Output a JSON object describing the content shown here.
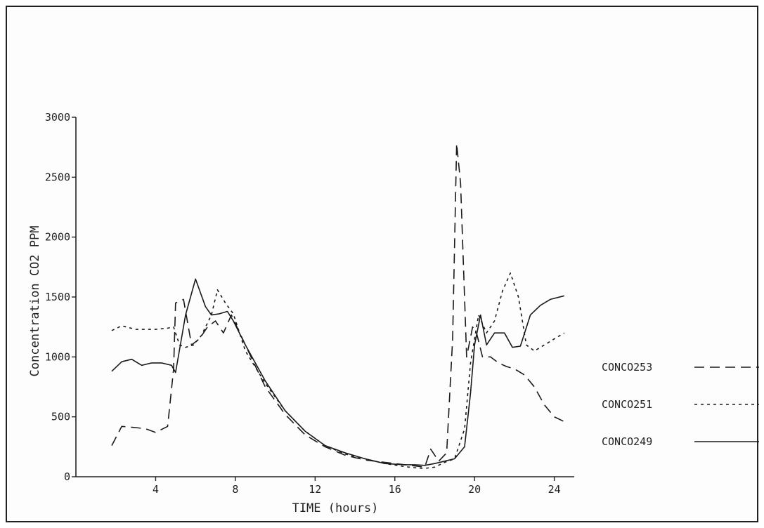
{
  "chart_data": {
    "type": "line",
    "title": "",
    "xlabel": "TIME (hours)",
    "ylabel": "Concentration CO2 PPM",
    "xlim": [
      0,
      25
    ],
    "ylim": [
      0,
      3000
    ],
    "x_ticks": [
      4,
      8,
      12,
      16,
      20,
      24
    ],
    "x_tick_labels": [
      "4",
      "8",
      "12",
      "16",
      "20",
      "24"
    ],
    "y_ticks": [
      0,
      500,
      1000,
      1500,
      2000,
      2500,
      3000
    ],
    "y_tick_labels": [
      "0",
      "500",
      "1000",
      "1500",
      "2000",
      "2500",
      "3000"
    ],
    "grid": false,
    "legend_position": "right",
    "series": [
      {
        "name": "CONCO253",
        "style": "dashed",
        "x": [
          1.8,
          2.3,
          3.0,
          3.5,
          4.0,
          4.6,
          4.9,
          5.0,
          5.4,
          5.8,
          6.2,
          6.6,
          7.0,
          7.4,
          7.8,
          8.5,
          9.5,
          10.5,
          11.5,
          12.5,
          13.5,
          14.5,
          15.5,
          16.5,
          17.0,
          17.5,
          17.8,
          18.2,
          18.6,
          18.9,
          19.1,
          19.3,
          19.6,
          19.9,
          20.1,
          20.4,
          20.8,
          21.2,
          21.6,
          22.0,
          22.5,
          23.0,
          23.5,
          24.0,
          24.5
        ],
        "y": [
          260,
          420,
          410,
          400,
          370,
          420,
          900,
          1450,
          1480,
          1100,
          1150,
          1250,
          1300,
          1200,
          1350,
          1100,
          750,
          520,
          350,
          250,
          180,
          140,
          120,
          100,
          90,
          80,
          230,
          130,
          200,
          1150,
          2780,
          2450,
          1000,
          1250,
          1200,
          1000,
          1000,
          950,
          920,
          900,
          850,
          750,
          600,
          500,
          460
        ]
      },
      {
        "name": "CONCO251",
        "style": "dotted",
        "x": [
          1.8,
          2.3,
          3.0,
          3.5,
          4.0,
          4.6,
          4.9,
          5.2,
          5.5,
          5.9,
          6.3,
          6.8,
          7.1,
          7.5,
          7.9,
          8.5,
          9.5,
          10.5,
          11.5,
          12.5,
          13.5,
          14.5,
          15.5,
          16.5,
          17.0,
          17.5,
          18.0,
          18.5,
          19.0,
          19.5,
          19.8,
          20.2,
          20.6,
          21.0,
          21.4,
          21.8,
          22.2,
          22.6,
          23.0,
          23.5,
          24.0,
          24.5
        ],
        "y": [
          1220,
          1260,
          1230,
          1230,
          1230,
          1240,
          1250,
          1100,
          1080,
          1100,
          1180,
          1350,
          1560,
          1450,
          1360,
          1050,
          780,
          550,
          380,
          260,
          190,
          150,
          110,
          85,
          75,
          70,
          80,
          120,
          150,
          400,
          950,
          1350,
          1200,
          1300,
          1550,
          1700,
          1500,
          1100,
          1050,
          1100,
          1150,
          1200
        ]
      },
      {
        "name": "CONCO249",
        "style": "solid",
        "x": [
          1.8,
          2.3,
          2.8,
          3.3,
          3.8,
          4.3,
          4.8,
          5.0,
          5.5,
          6.0,
          6.5,
          6.8,
          7.2,
          7.6,
          7.9,
          8.5,
          9.5,
          10.5,
          11.5,
          12.5,
          13.5,
          14.5,
          15.5,
          16.5,
          17.0,
          17.5,
          18.0,
          18.5,
          19.0,
          19.5,
          19.8,
          20.0,
          20.3,
          20.6,
          21.0,
          21.5,
          21.9,
          22.3,
          22.8,
          23.3,
          23.8,
          24.5
        ],
        "y": [
          880,
          960,
          980,
          930,
          950,
          950,
          930,
          870,
          1350,
          1650,
          1420,
          1350,
          1360,
          1380,
          1300,
          1100,
          800,
          550,
          380,
          260,
          200,
          150,
          110,
          100,
          100,
          95,
          110,
          130,
          150,
          250,
          700,
          1100,
          1350,
          1100,
          1200,
          1200,
          1080,
          1090,
          1350,
          1430,
          1480,
          1510
        ]
      }
    ]
  }
}
